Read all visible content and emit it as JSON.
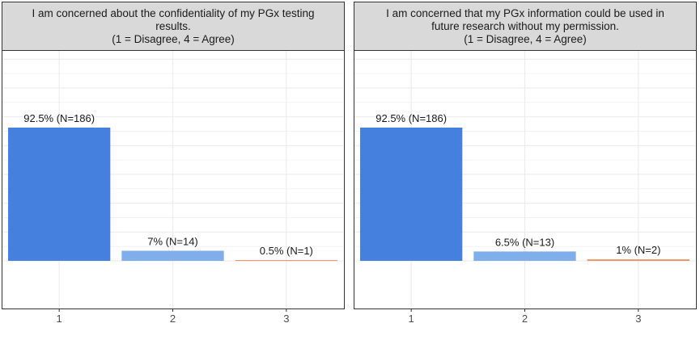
{
  "chart_data": [
    {
      "type": "bar",
      "title_lines": [
        "I am concerned about the confidentiality of my PGx testing",
        "results.",
        "(1 = Disagree, 4 = Agree)"
      ],
      "categories": [
        "1",
        "2",
        "3"
      ],
      "values": [
        92.5,
        7,
        0.5
      ],
      "bar_labels": [
        "92.5% (N=186)",
        "7% (N=14)",
        "0.5% (N=1)"
      ],
      "colors": [
        "#4580df",
        "#7faeea",
        "#f08a5a"
      ],
      "ylim": [
        0,
        100
      ],
      "grid": true
    },
    {
      "type": "bar",
      "title_lines": [
        "I am concerned that my PGx information could be used in",
        "future research without my permission.",
        "(1 = Disagree, 4 = Agree)"
      ],
      "categories": [
        "1",
        "2",
        "3"
      ],
      "values": [
        92.5,
        6.5,
        1
      ],
      "bar_labels": [
        "92.5% (N=186)",
        "6.5% (N=13)",
        "1% (N=2)"
      ],
      "colors": [
        "#4580df",
        "#7faeea",
        "#f08a5a"
      ],
      "ylim": [
        0,
        100
      ],
      "grid": true
    }
  ]
}
